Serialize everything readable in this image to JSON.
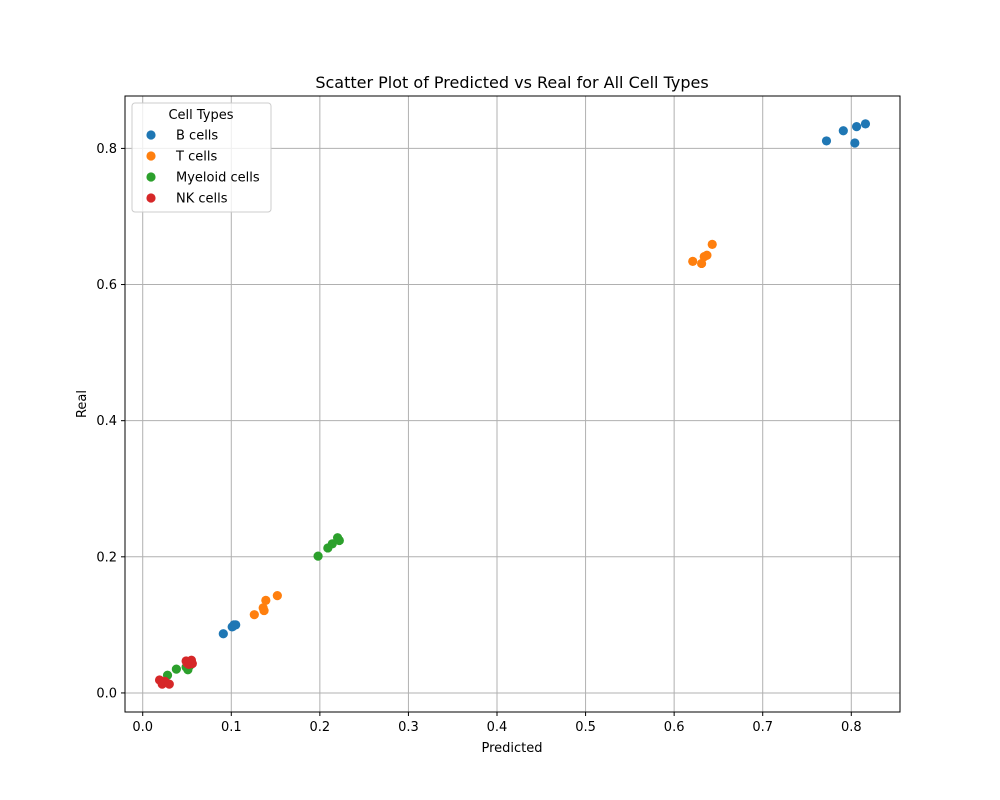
{
  "chart_data": {
    "type": "scatter",
    "title": "Scatter Plot of Predicted vs Real for All Cell Types",
    "xlabel": "Predicted",
    "ylabel": "Real",
    "xlim": [
      -0.02,
      0.855
    ],
    "ylim": [
      -0.028,
      0.877
    ],
    "xticks": [
      "0.0",
      "0.1",
      "0.2",
      "0.3",
      "0.4",
      "0.5",
      "0.6",
      "0.7",
      "0.8"
    ],
    "yticks": [
      "0.0",
      "0.2",
      "0.4",
      "0.6",
      "0.8"
    ],
    "grid": true,
    "legend": {
      "title": "Cell Types",
      "placement": "top-left"
    },
    "series": [
      {
        "name": "B cells",
        "color": "#1f77b4",
        "points": [
          [
            0.772,
            0.811
          ],
          [
            0.791,
            0.826
          ],
          [
            0.806,
            0.832
          ],
          [
            0.816,
            0.836
          ],
          [
            0.804,
            0.808
          ],
          [
            0.091,
            0.087
          ],
          [
            0.101,
            0.097
          ],
          [
            0.103,
            0.1
          ],
          [
            0.105,
            0.1
          ],
          [
            0.102,
            0.098
          ]
        ]
      },
      {
        "name": "T cells",
        "color": "#ff7f0e",
        "points": [
          [
            0.621,
            0.634
          ],
          [
            0.631,
            0.631
          ],
          [
            0.634,
            0.641
          ],
          [
            0.637,
            0.643
          ],
          [
            0.643,
            0.659
          ],
          [
            0.126,
            0.115
          ],
          [
            0.136,
            0.125
          ],
          [
            0.137,
            0.121
          ],
          [
            0.139,
            0.136
          ],
          [
            0.152,
            0.143
          ]
        ]
      },
      {
        "name": "Myeloid cells",
        "color": "#2ca02c",
        "points": [
          [
            0.198,
            0.201
          ],
          [
            0.209,
            0.213
          ],
          [
            0.214,
            0.219
          ],
          [
            0.22,
            0.228
          ],
          [
            0.222,
            0.224
          ],
          [
            0.028,
            0.026
          ],
          [
            0.038,
            0.035
          ],
          [
            0.049,
            0.038
          ],
          [
            0.051,
            0.034
          ],
          [
            0.053,
            0.04
          ]
        ]
      },
      {
        "name": "NK cells",
        "color": "#d62728",
        "points": [
          [
            0.019,
            0.019
          ],
          [
            0.022,
            0.013
          ],
          [
            0.025,
            0.017
          ],
          [
            0.03,
            0.013
          ],
          [
            0.049,
            0.047
          ],
          [
            0.052,
            0.042
          ],
          [
            0.054,
            0.046
          ],
          [
            0.055,
            0.048
          ],
          [
            0.056,
            0.043
          ],
          [
            0.05,
            0.044
          ]
        ]
      }
    ]
  }
}
